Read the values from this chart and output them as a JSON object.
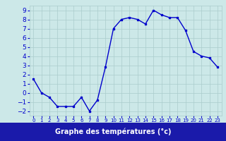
{
  "hours": [
    0,
    1,
    2,
    3,
    4,
    5,
    6,
    7,
    8,
    9,
    10,
    11,
    12,
    13,
    14,
    15,
    16,
    17,
    18,
    19,
    20,
    21,
    22,
    23
  ],
  "temps": [
    1.5,
    0.0,
    -0.5,
    -1.5,
    -1.5,
    -1.5,
    -0.5,
    -2.0,
    -0.8,
    2.8,
    7.0,
    8.0,
    8.2,
    8.0,
    7.5,
    9.0,
    8.5,
    8.2,
    8.2,
    6.8,
    4.5,
    4.0,
    3.8,
    2.8
  ],
  "line_color": "#0000cc",
  "marker": "s",
  "marker_size": 2.0,
  "bg_color": "#cce8e8",
  "grid_color": "#aacccc",
  "xlabel": "Graphe des températures (°c)",
  "xlabel_bg": "#1a1aaa",
  "xlabel_color": "#ffffff",
  "ylim": [
    -2.5,
    9.5
  ],
  "xlim": [
    -0.5,
    23.5
  ],
  "yticks": [
    -2,
    -1,
    0,
    1,
    2,
    3,
    4,
    5,
    6,
    7,
    8,
    9
  ],
  "xticks": [
    0,
    1,
    2,
    3,
    4,
    5,
    6,
    7,
    8,
    9,
    10,
    11,
    12,
    13,
    14,
    15,
    16,
    17,
    18,
    19,
    20,
    21,
    22,
    23
  ],
  "tick_fontsize": 6.5,
  "line_width": 1.0
}
